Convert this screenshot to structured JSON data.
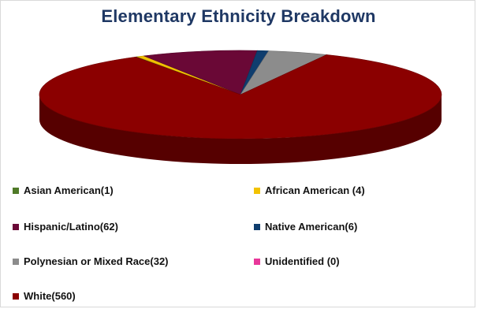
{
  "chart_data": {
    "type": "pie",
    "title": "Elementary Ethnicity Breakdown",
    "legend_placement": "bottom",
    "series": [
      {
        "name": "Asian American(1)",
        "value": 1,
        "color": "#4f7a28"
      },
      {
        "name": "African American (4)",
        "value": 4,
        "color": "#f2c200"
      },
      {
        "name": "Hispanic/Latino(62)",
        "value": 62,
        "color": "#6a0836"
      },
      {
        "name": "Native American(6)",
        "value": 6,
        "color": "#0f3d6e"
      },
      {
        "name": "Polynesian or Mixed Race(32)",
        "value": 32,
        "color": "#8c8c8c"
      },
      {
        "name": "Unidentified (0)",
        "value": 0,
        "color": "#e8379a"
      },
      {
        "name": "White(560)",
        "value": 560,
        "color": "#8b0000"
      }
    ]
  }
}
